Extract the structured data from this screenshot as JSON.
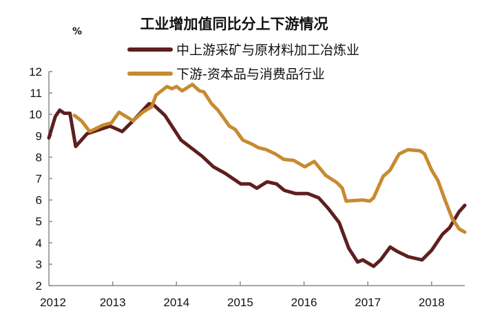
{
  "chart_data": {
    "type": "line",
    "title": "工业增加值同比分上下游情况",
    "ylabel": "%",
    "xlabel": "",
    "xlim": [
      2012,
      2018.52
    ],
    "ylim": [
      2,
      12
    ],
    "x_ticks": [
      "2012",
      "2013",
      "2014",
      "2015",
      "2016",
      "2017",
      "2018"
    ],
    "y_ticks": [
      "2",
      "3",
      "4",
      "5",
      "6",
      "7",
      "8",
      "9",
      "10",
      "11",
      "12"
    ],
    "grid": false,
    "legend_position": "top-right",
    "series": [
      {
        "name": "中上游采矿与原材料加工冶炼业",
        "color": "#5e1f1f",
        "points": [
          [
            2012.0,
            8.9
          ],
          [
            2012.1,
            9.9
          ],
          [
            2012.17,
            10.2
          ],
          [
            2012.24,
            10.05
          ],
          [
            2012.33,
            10.05
          ],
          [
            2012.42,
            8.5
          ],
          [
            2012.6,
            9.1
          ],
          [
            2012.96,
            9.45
          ],
          [
            2013.15,
            9.2
          ],
          [
            2013.32,
            9.7
          ],
          [
            2013.57,
            10.5
          ],
          [
            2013.64,
            10.45
          ],
          [
            2013.82,
            9.95
          ],
          [
            2014.07,
            8.8
          ],
          [
            2014.4,
            8.05
          ],
          [
            2014.58,
            7.55
          ],
          [
            2014.76,
            7.25
          ],
          [
            2015.01,
            6.75
          ],
          [
            2015.15,
            6.75
          ],
          [
            2015.26,
            6.55
          ],
          [
            2015.42,
            6.85
          ],
          [
            2015.57,
            6.75
          ],
          [
            2015.69,
            6.45
          ],
          [
            2015.87,
            6.3
          ],
          [
            2016.06,
            6.3
          ],
          [
            2016.23,
            6.1
          ],
          [
            2016.38,
            5.6
          ],
          [
            2016.55,
            4.95
          ],
          [
            2016.7,
            3.75
          ],
          [
            2016.84,
            3.1
          ],
          [
            2016.92,
            3.2
          ],
          [
            2017.09,
            2.9
          ],
          [
            2017.2,
            3.2
          ],
          [
            2017.35,
            3.8
          ],
          [
            2017.46,
            3.6
          ],
          [
            2017.63,
            3.35
          ],
          [
            2017.85,
            3.2
          ],
          [
            2018.0,
            3.65
          ],
          [
            2018.17,
            4.4
          ],
          [
            2018.28,
            4.7
          ],
          [
            2018.43,
            5.45
          ],
          [
            2018.52,
            5.75
          ]
        ]
      },
      {
        "name": "下游-资本品与消费品行业",
        "color": "#c88a30",
        "points": [
          [
            2012.4,
            9.95
          ],
          [
            2012.51,
            9.7
          ],
          [
            2012.64,
            9.2
          ],
          [
            2012.85,
            9.5
          ],
          [
            2012.98,
            9.6
          ],
          [
            2013.1,
            10.1
          ],
          [
            2013.32,
            9.7
          ],
          [
            2013.47,
            10.1
          ],
          [
            2013.61,
            10.35
          ],
          [
            2013.68,
            10.9
          ],
          [
            2013.85,
            11.3
          ],
          [
            2013.93,
            11.2
          ],
          [
            2014.0,
            11.3
          ],
          [
            2014.09,
            11.1
          ],
          [
            2014.25,
            11.4
          ],
          [
            2014.36,
            11.1
          ],
          [
            2014.43,
            11.05
          ],
          [
            2014.55,
            10.5
          ],
          [
            2014.65,
            10.2
          ],
          [
            2014.83,
            9.45
          ],
          [
            2014.92,
            9.3
          ],
          [
            2015.04,
            8.8
          ],
          [
            2015.19,
            8.6
          ],
          [
            2015.28,
            8.45
          ],
          [
            2015.41,
            8.35
          ],
          [
            2015.55,
            8.15
          ],
          [
            2015.68,
            7.9
          ],
          [
            2015.84,
            7.85
          ],
          [
            2016.01,
            7.55
          ],
          [
            2016.16,
            7.8
          ],
          [
            2016.34,
            7.15
          ],
          [
            2016.52,
            6.8
          ],
          [
            2016.6,
            6.55
          ],
          [
            2016.66,
            5.95
          ],
          [
            2016.92,
            6.0
          ],
          [
            2017.03,
            5.95
          ],
          [
            2017.09,
            6.1
          ],
          [
            2017.24,
            7.1
          ],
          [
            2017.35,
            7.4
          ],
          [
            2017.49,
            8.15
          ],
          [
            2017.63,
            8.35
          ],
          [
            2017.82,
            8.3
          ],
          [
            2017.89,
            8.15
          ],
          [
            2018.0,
            7.4
          ],
          [
            2018.1,
            6.9
          ],
          [
            2018.21,
            6.0
          ],
          [
            2018.32,
            5.15
          ],
          [
            2018.43,
            4.65
          ],
          [
            2018.52,
            4.5
          ]
        ]
      }
    ]
  }
}
